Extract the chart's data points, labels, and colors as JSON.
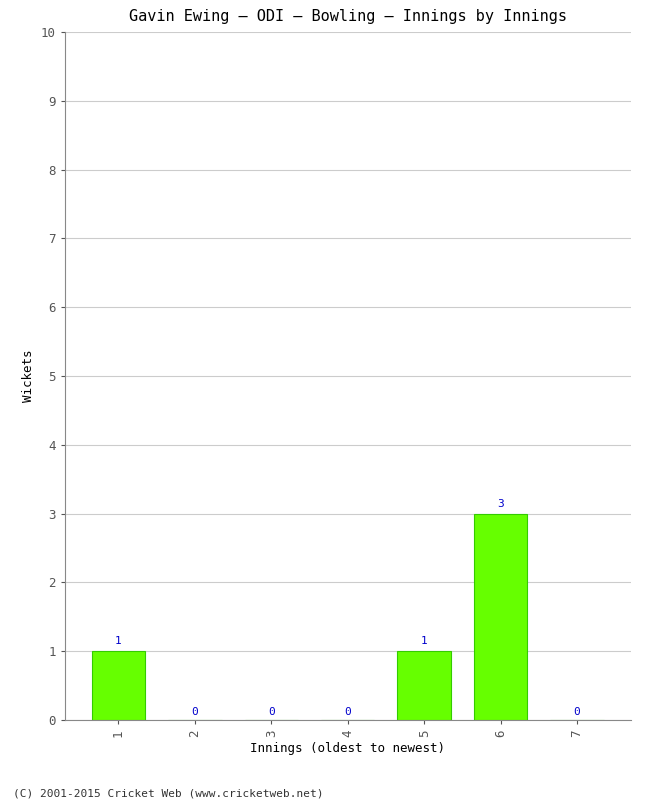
{
  "title": "Gavin Ewing – ODI – Bowling – Innings by Innings",
  "xlabel": "Innings (oldest to newest)",
  "ylabel": "Wickets",
  "categories": [
    1,
    2,
    3,
    4,
    5,
    6,
    7
  ],
  "values": [
    1,
    0,
    0,
    0,
    1,
    3,
    0
  ],
  "bar_color": "#66ff00",
  "bar_edge_color": "#33cc00",
  "ylim": [
    0,
    10
  ],
  "yticks": [
    0,
    1,
    2,
    3,
    4,
    5,
    6,
    7,
    8,
    9,
    10
  ],
  "background_color": "#ffffff",
  "plot_bg_color": "#ffffff",
  "label_color": "#0000cc",
  "grid_color": "#cccccc",
  "title_fontsize": 11,
  "axis_label_fontsize": 9,
  "tick_fontsize": 9,
  "annotation_fontsize": 8,
  "footer": "(C) 2001-2015 Cricket Web (www.cricketweb.net)"
}
